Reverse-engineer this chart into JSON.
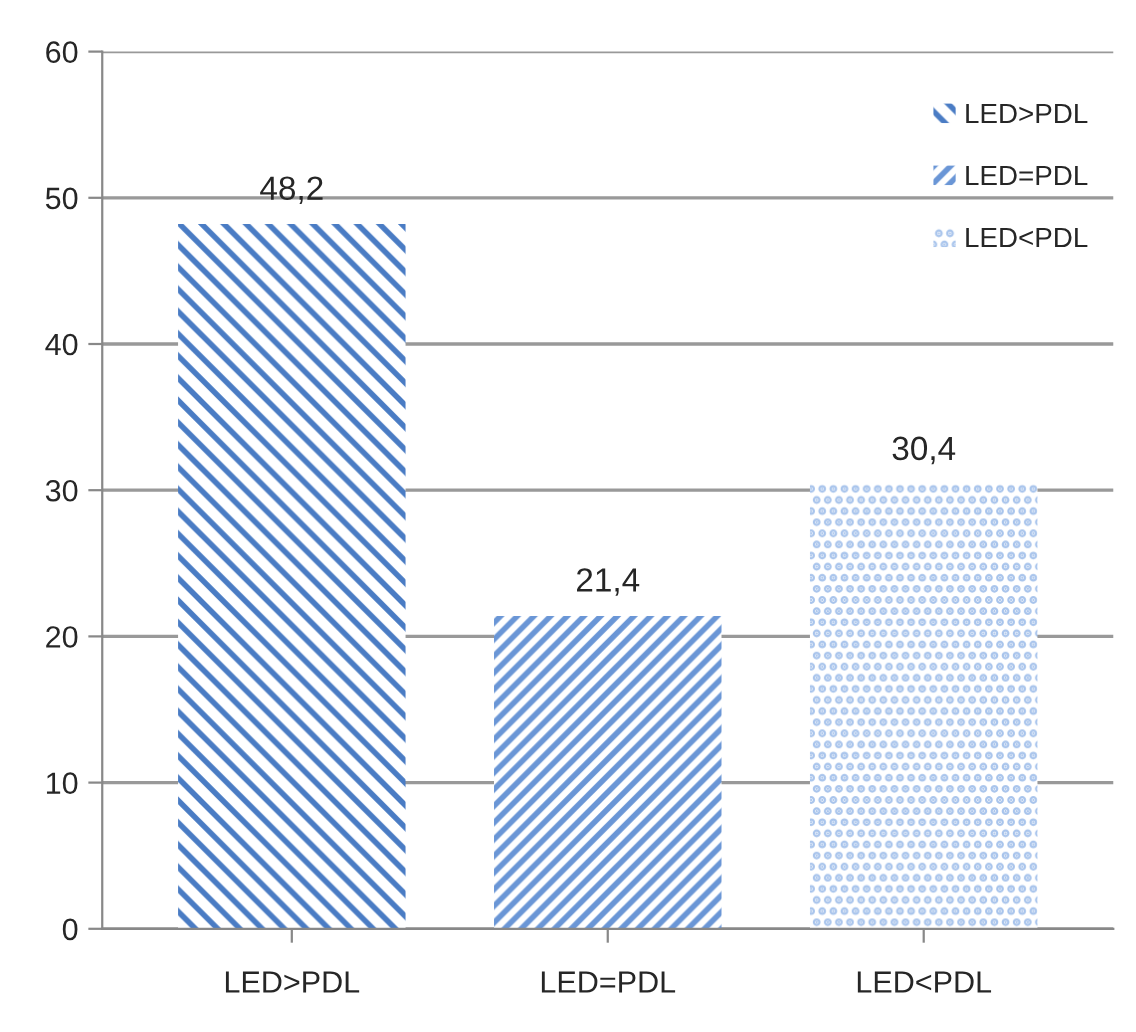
{
  "chart_data": {
    "type": "bar",
    "categories": [
      "LED>PDL",
      "LED=PDL",
      "LED<PDL"
    ],
    "series": [
      {
        "name": "LED>PDL",
        "color": "#4a7cc4",
        "values": [
          48.2,
          null,
          null
        ]
      },
      {
        "name": "LED=PDL",
        "color": "#6a96d6",
        "values": [
          null,
          21.4,
          null
        ]
      },
      {
        "name": "LED<PDL",
        "color": "#a8c4ec",
        "values": [
          null,
          null,
          30.4
        ]
      }
    ],
    "ylim": [
      0,
      60
    ],
    "yticks": [
      0,
      10,
      20,
      30,
      40,
      50,
      60
    ],
    "grid": "y",
    "legend": "top right",
    "value_labels": [
      "48,2",
      "21,4",
      "30,4"
    ]
  }
}
